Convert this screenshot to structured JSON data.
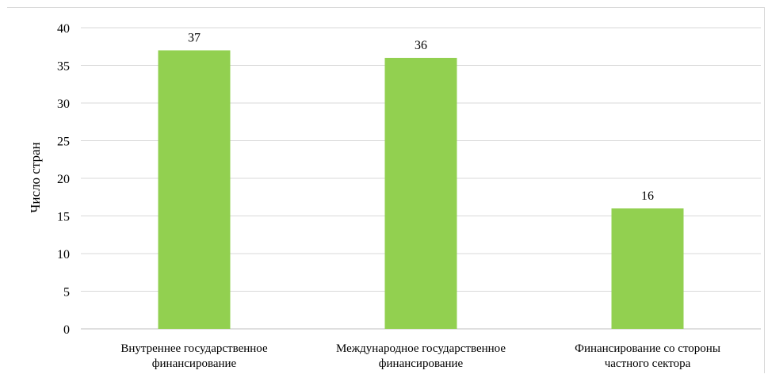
{
  "chart_data": {
    "type": "bar",
    "title": "",
    "xlabel": "",
    "ylabel": "Число стран",
    "categories": [
      [
        "Внутреннее государственное",
        "финансирование"
      ],
      [
        "Международное государственное",
        "финансирование"
      ],
      [
        "Финансирование со стороны",
        "частного сектора"
      ]
    ],
    "values": [
      37,
      36,
      16
    ],
    "data_labels": [
      "37",
      "36",
      "16"
    ],
    "ylim": [
      0,
      40
    ],
    "yticks": [
      0,
      5,
      10,
      15,
      20,
      25,
      30,
      35,
      40
    ],
    "grid": true,
    "legend": "none",
    "colors": {
      "bar": "#92d050",
      "grid": "#d9d9d9",
      "axis": "#bfbfbf",
      "text": "#000000"
    }
  }
}
